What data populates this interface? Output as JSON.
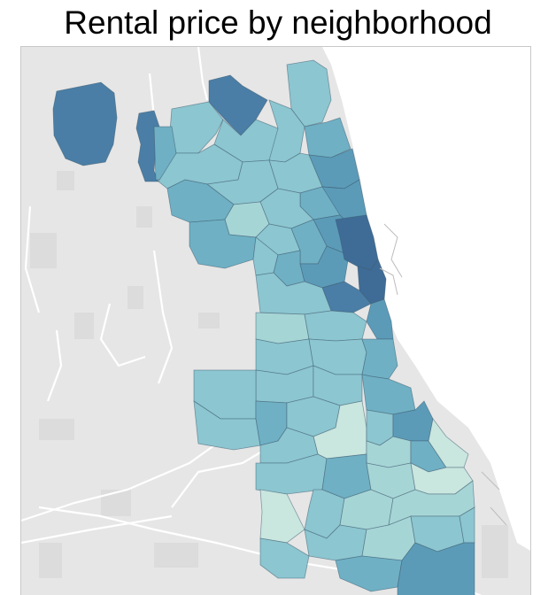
{
  "title": "Rental price by neighborhood",
  "colors": {
    "lake": "#ffffff",
    "land": "#e6e6e6",
    "land_light": "#ececec",
    "land_patch": "#dcdcdc",
    "road": "#ffffff",
    "border": "#c8c8c8",
    "price_scale": [
      "#c9e6df",
      "#a6d5d6",
      "#8cc6d0",
      "#6fb0c4",
      "#5b9bb8",
      "#4a7ea6",
      "#3f6c96"
    ]
  },
  "map": {
    "type": "choropleth",
    "measure": "rental price",
    "region_type": "neighborhood"
  }
}
